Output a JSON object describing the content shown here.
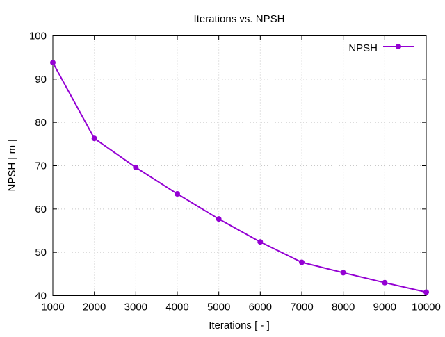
{
  "chart_data": {
    "type": "line",
    "title": "Iterations  vs. NPSH",
    "xlabel": "Iterations [ - ]",
    "ylabel": "NPSH [ m ]",
    "xlim": [
      1000,
      10000
    ],
    "ylim": [
      40,
      100
    ],
    "xticks": [
      1000,
      2000,
      3000,
      4000,
      5000,
      6000,
      7000,
      8000,
      9000,
      10000
    ],
    "yticks": [
      40,
      50,
      60,
      70,
      80,
      90,
      100
    ],
    "grid": true,
    "legend": "top-right",
    "series": [
      {
        "name": "NPSH",
        "color": "#9400d3",
        "x": [
          1000,
          2000,
          3000,
          4000,
          5000,
          6000,
          7000,
          8000,
          9000,
          10000
        ],
        "y": [
          93.8,
          76.3,
          69.6,
          63.5,
          57.7,
          52.4,
          47.7,
          45.3,
          43.0,
          40.8
        ]
      }
    ]
  }
}
